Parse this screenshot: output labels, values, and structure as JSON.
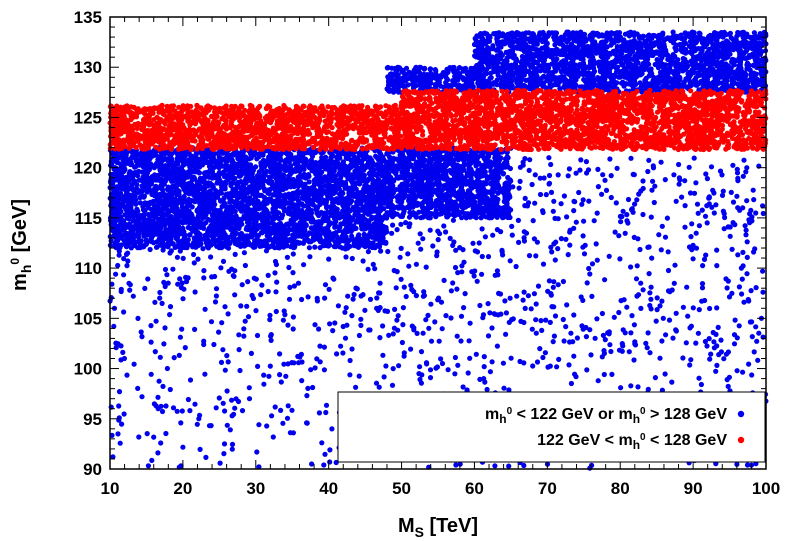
{
  "chart_data": {
    "type": "scatter",
    "xlabel": "M_S [TeV]",
    "ylabel": "m_h^0 [GeV]",
    "xlim": [
      10,
      100
    ],
    "ylim": [
      90,
      135
    ],
    "x_ticks": [
      "10",
      "20",
      "30",
      "40",
      "50",
      "60",
      "70",
      "80",
      "90",
      "100"
    ],
    "y_ticks": [
      "90",
      "95",
      "100",
      "105",
      "110",
      "115",
      "120",
      "125",
      "130",
      "135"
    ],
    "grid": false,
    "legend_position": "bottom-right",
    "series": [
      {
        "name": "m_h^0 < 122 GeV or m_h^0 > 128 GeV",
        "color": "#0000ee",
        "bands": [
          {
            "x": [
              10,
              48
            ],
            "y_low": 112,
            "y_high": 122
          },
          {
            "x": [
              48,
              65
            ],
            "y_low": 115,
            "y_high": 122
          },
          {
            "x": [
              48,
              60
            ],
            "y_low": 127.5,
            "y_high": 130
          },
          {
            "x": [
              60,
              100
            ],
            "y_low": 127.5,
            "y_high": 133.5
          }
        ],
        "sparse_region": {
          "x": [
            10,
            100
          ],
          "y": [
            90,
            121
          ]
        }
      },
      {
        "name": "122 GeV < m_h^0 < 128 GeV",
        "color": "#ff0000",
        "bands": [
          {
            "x": [
              10,
              50
            ],
            "y_low": 121.8,
            "y_high": 126.2
          },
          {
            "x": [
              50,
              100
            ],
            "y_low": 121.8,
            "y_high": 127.7
          }
        ]
      }
    ]
  }
}
